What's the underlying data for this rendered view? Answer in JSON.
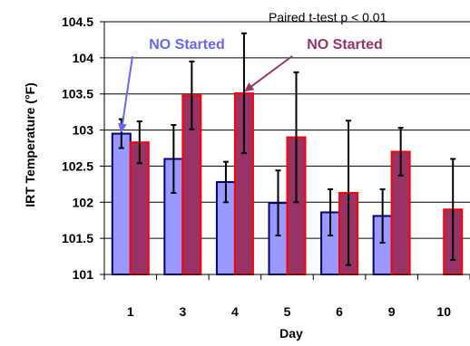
{
  "chart_data": {
    "type": "bar",
    "title": "",
    "xlabel": "Day",
    "ylabel": "IRT Temperature (°F)",
    "ylim": [
      101,
      104.5
    ],
    "yticks": [
      "101",
      "101.5",
      "102",
      "102.5",
      "103",
      "103.5",
      "104",
      "104.5"
    ],
    "categories": [
      "1",
      "3",
      "4",
      "5",
      "6",
      "9",
      "10"
    ],
    "grid": true,
    "legend": "none",
    "note": "Paired t-test p < 0.01",
    "series": [
      {
        "color": "#9999ff",
        "edge": "#000080",
        "values": [
          102.95,
          102.6,
          102.28,
          101.99,
          101.86,
          101.81,
          null
        ],
        "error": [
          0.2,
          0.47,
          0.28,
          0.45,
          0.32,
          0.37,
          null
        ]
      },
      {
        "color": "#993366",
        "edge": "#ff0000",
        "values": [
          102.83,
          103.48,
          103.51,
          102.9,
          102.13,
          102.7,
          101.9
        ],
        "error": [
          0.29,
          0.47,
          0.83,
          0.9,
          1.0,
          0.33,
          0.7
        ]
      }
    ],
    "annotations": [
      {
        "text": "NO Started",
        "color": "#6666ff",
        "target_category": "1",
        "target_series": 0
      },
      {
        "text": "NO Started",
        "color": "#993366",
        "target_category": "4",
        "target_series": 1
      }
    ]
  }
}
